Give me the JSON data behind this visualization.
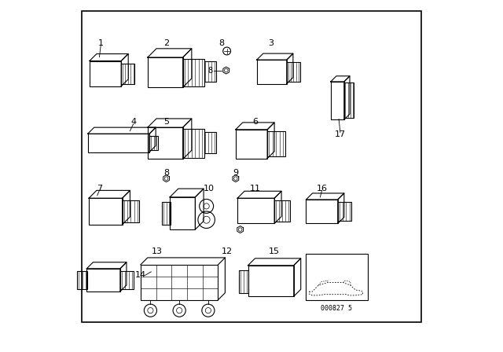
{
  "background_color": "#ffffff",
  "diagram_number": "000827 5",
  "label_fontsize": 8,
  "lw": 0.8
}
